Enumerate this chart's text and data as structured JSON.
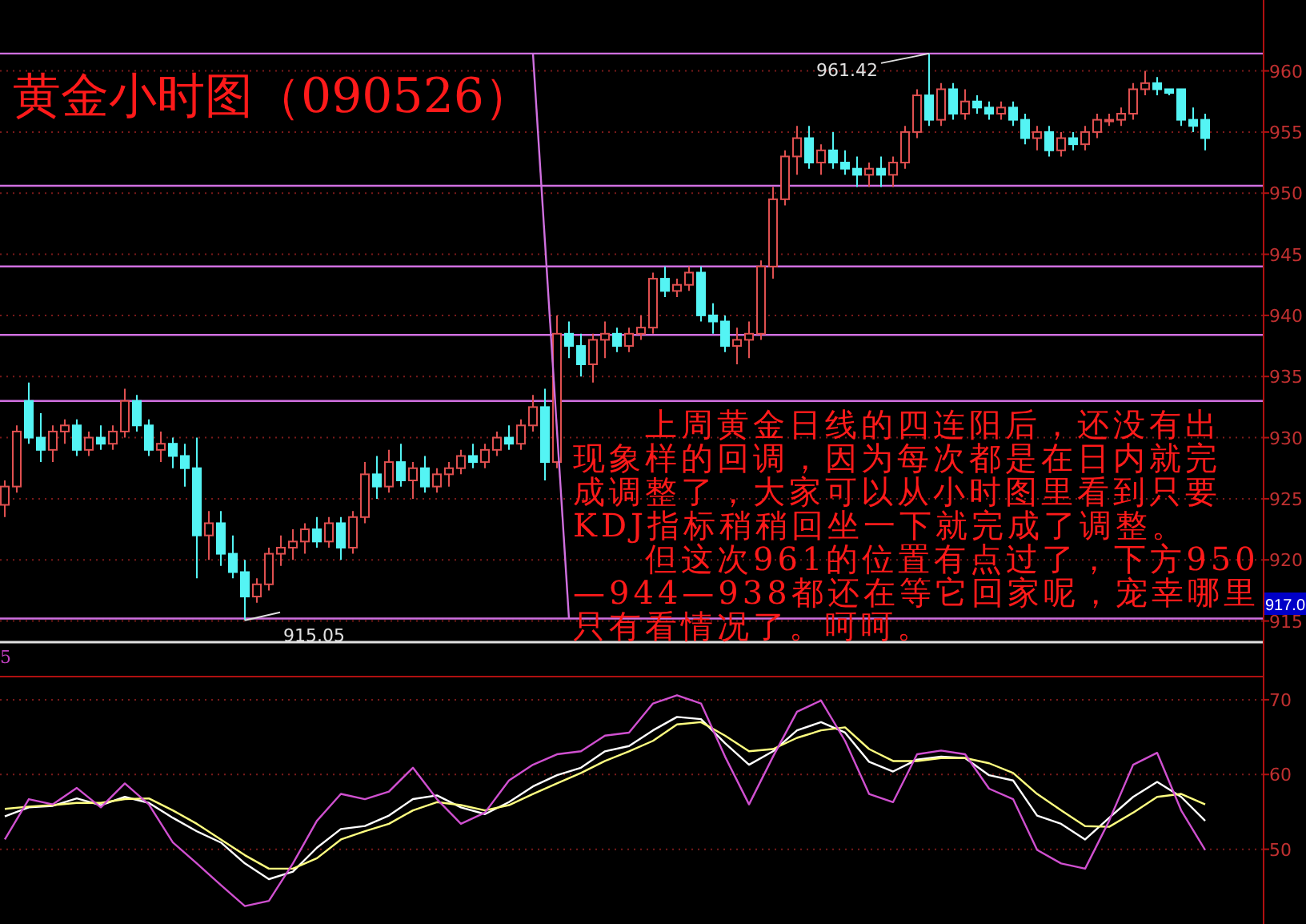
{
  "chart_data": [
    {
      "type": "candlestick",
      "title": "黄金小时图（090526）",
      "categories": [
        null,
        null,
        null,
        null,
        null,
        null,
        null,
        null,
        null,
        null,
        null,
        null,
        null,
        null,
        null,
        null,
        null,
        null,
        null,
        null,
        null,
        null,
        null,
        null,
        null,
        null,
        null,
        null,
        null,
        null,
        null,
        null,
        null,
        null,
        null,
        null,
        null,
        null,
        null,
        null,
        null,
        null,
        null,
        null,
        null,
        null,
        null,
        null,
        null,
        null,
        null,
        null,
        null,
        null,
        null,
        null,
        null,
        null,
        null,
        null,
        null,
        null,
        null,
        null,
        null,
        null,
        null,
        null,
        null,
        null,
        null,
        null,
        null,
        null,
        null,
        null,
        null,
        null,
        null,
        null,
        null,
        null,
        null,
        null,
        null,
        null,
        null,
        null,
        null,
        null,
        null,
        null,
        null,
        null,
        null,
        null,
        null,
        null,
        null,
        null,
        null
      ],
      "ohlc": [
        [
          924.5,
          926.5,
          923.5,
          926
        ],
        [
          926,
          931,
          925.5,
          930.5
        ],
        [
          933,
          934.5,
          929.5,
          930
        ],
        [
          930,
          932,
          928,
          929
        ],
        [
          929,
          931,
          928,
          930.5
        ],
        [
          930.5,
          931.5,
          929.5,
          931
        ],
        [
          931,
          931.5,
          928.5,
          929
        ],
        [
          929,
          930.5,
          928.5,
          930
        ],
        [
          930,
          931,
          929,
          929.5
        ],
        [
          929.5,
          931,
          929,
          930.5
        ],
        [
          930.5,
          934,
          930,
          933
        ],
        [
          933,
          933.5,
          930.5,
          931
        ],
        [
          931,
          931.5,
          928.5,
          929
        ],
        [
          929,
          930.5,
          928,
          929.5
        ],
        [
          929.5,
          930,
          927.5,
          928.5
        ],
        [
          928.5,
          929.5,
          926,
          927.5
        ],
        [
          927.5,
          930,
          918.5,
          922
        ],
        [
          922,
          924,
          920,
          923
        ],
        [
          923,
          924,
          919.5,
          920.5
        ],
        [
          920.5,
          922,
          918.5,
          919
        ],
        [
          919,
          920,
          915.05,
          917
        ],
        [
          917,
          918.5,
          916.5,
          918
        ],
        [
          918,
          921,
          917.5,
          920.5
        ],
        [
          920.5,
          922,
          919.5,
          921
        ],
        [
          921,
          922.5,
          920,
          921.5
        ],
        [
          921.5,
          923,
          920.5,
          922.5
        ],
        [
          922.5,
          923.5,
          921,
          921.5
        ],
        [
          921.5,
          923.5,
          921,
          923
        ],
        [
          923,
          923.5,
          920,
          921
        ],
        [
          921,
          924,
          920.5,
          923.5
        ],
        [
          923.5,
          928,
          923,
          927
        ],
        [
          927,
          928.5,
          925,
          926
        ],
        [
          926,
          929,
          925.5,
          928
        ],
        [
          928,
          929.5,
          926,
          926.5
        ],
        [
          926.5,
          928,
          925,
          927.5
        ],
        [
          927.5,
          928.5,
          925.5,
          926
        ],
        [
          926,
          927.5,
          925.5,
          927
        ],
        [
          927,
          928,
          926,
          927.5
        ],
        [
          927.5,
          929,
          927,
          928.5
        ],
        [
          928.5,
          929.5,
          927.5,
          928
        ],
        [
          928,
          929.5,
          927.5,
          929
        ],
        [
          929,
          930.5,
          928.5,
          930
        ],
        [
          930,
          931,
          929,
          929.5
        ],
        [
          929.5,
          931.5,
          929,
          931
        ],
        [
          931,
          933.5,
          930.5,
          932.5
        ],
        [
          932.5,
          934,
          926.5,
          928
        ],
        [
          928,
          940,
          927.5,
          938.5
        ],
        [
          938.5,
          939.5,
          936.5,
          937.5
        ],
        [
          937.5,
          938.5,
          935,
          936
        ],
        [
          936,
          938.5,
          934.5,
          938
        ],
        [
          938,
          939.5,
          936.5,
          938.5
        ],
        [
          938.5,
          939,
          937,
          937.5
        ],
        [
          937.5,
          939,
          937,
          938.5
        ],
        [
          938.5,
          940,
          938,
          939
        ],
        [
          939,
          943.5,
          938.5,
          943
        ],
        [
          943,
          944,
          941.5,
          942
        ],
        [
          942,
          943,
          941.5,
          942.5
        ],
        [
          942.5,
          944,
          942,
          943.5
        ],
        [
          943.5,
          944,
          939.5,
          940
        ],
        [
          940,
          941,
          938.5,
          939.5
        ],
        [
          939.5,
          940,
          937,
          937.5
        ],
        [
          937.5,
          939,
          936,
          938
        ],
        [
          938,
          939.5,
          936.5,
          938.5
        ],
        [
          938.5,
          944.5,
          938,
          944
        ],
        [
          944,
          950.5,
          943,
          949.5
        ],
        [
          949.5,
          953.5,
          949,
          953
        ],
        [
          953,
          955.5,
          951.5,
          954.5
        ],
        [
          954.5,
          955.5,
          952,
          952.5
        ],
        [
          952.5,
          954,
          951.5,
          953.5
        ],
        [
          953.5,
          955,
          952,
          952.5
        ],
        [
          952.5,
          953.5,
          951.5,
          952
        ],
        [
          952,
          953,
          950.5,
          951.5
        ],
        [
          951.5,
          952.5,
          950.5,
          952
        ],
        [
          952,
          953,
          950.5,
          951.5
        ],
        [
          951.5,
          953,
          950.5,
          952.5
        ],
        [
          952.5,
          955.5,
          952,
          955
        ],
        [
          955,
          958.5,
          954.5,
          958
        ],
        [
          958,
          961.42,
          955.5,
          956
        ],
        [
          956,
          959,
          955.5,
          958.5
        ],
        [
          958.5,
          959,
          956,
          956.5
        ],
        [
          956.5,
          958.5,
          956,
          957.5
        ],
        [
          957.5,
          958,
          956.5,
          957
        ],
        [
          957,
          957.5,
          956,
          956.5
        ],
        [
          956.5,
          957.5,
          956,
          957
        ],
        [
          957,
          957.5,
          955.5,
          956
        ],
        [
          956,
          956.5,
          954,
          954.5
        ],
        [
          954.5,
          955.5,
          953.5,
          955
        ],
        [
          955,
          955.5,
          953,
          953.5
        ],
        [
          953.5,
          955,
          953,
          954.5
        ],
        [
          954.5,
          955,
          953.5,
          954
        ],
        [
          954,
          955.5,
          953.5,
          955
        ],
        [
          955,
          956.5,
          954.5,
          956
        ],
        [
          956,
          956.5,
          955.5,
          956
        ],
        [
          956,
          957,
          955.5,
          956.5
        ],
        [
          956.5,
          959,
          956,
          958.5
        ],
        [
          958.5,
          960,
          958,
          959
        ],
        [
          959,
          959.5,
          958,
          958.5
        ],
        [
          958.5,
          958.5,
          958,
          958.2
        ],
        [
          958.5,
          958.5,
          955.5,
          956
        ],
        [
          956,
          957,
          955,
          955.5
        ],
        [
          956,
          956.5,
          953.5,
          954.5
        ]
      ],
      "series": [
        {
          "type": "line",
          "values": [
            null,
            null,
            null,
            null,
            null,
            null,
            null,
            null,
            null,
            null,
            null,
            null,
            null,
            null,
            null,
            null,
            null,
            null,
            null,
            null,
            null,
            null,
            null,
            null,
            null,
            null,
            null,
            null,
            null,
            null,
            null,
            null,
            null,
            null,
            null,
            null,
            null,
            null,
            null,
            null,
            null,
            null,
            null,
            null,
            961.4,
            null,
            null,
            915.2,
            null,
            null,
            null,
            null,
            null,
            null,
            null,
            null,
            null,
            null,
            null,
            null,
            null,
            null,
            null,
            null,
            null,
            null,
            null,
            null,
            null,
            null,
            null,
            null,
            null,
            null,
            null,
            null,
            null,
            null,
            null,
            null,
            null,
            null,
            null,
            null,
            null,
            null,
            null,
            null,
            null,
            null,
            null,
            null,
            null,
            null,
            null,
            null,
            null,
            null,
            null,
            null,
            null
          ],
          "color": "#d070e0"
        }
      ],
      "ylim": [
        913.4,
        965.8
      ],
      "yticks": [
        915,
        920,
        925,
        930,
        935,
        940,
        945,
        950,
        955,
        960
      ],
      "grid": "y",
      "ref_lines": [
        {
          "axis": "y",
          "value": 961.42,
          "color": "#d070e0"
        },
        {
          "axis": "y",
          "value": 950.6,
          "color": "#d070e0"
        },
        {
          "axis": "y",
          "value": 944,
          "color": "#d070e0"
        },
        {
          "axis": "y",
          "value": 938.4,
          "color": "#d070e0"
        },
        {
          "axis": "y",
          "value": 933,
          "color": "#d070e0"
        },
        {
          "axis": "y",
          "value": 915.2,
          "color": "#d070e0"
        }
      ],
      "annotations": [
        {
          "text": "961.42",
          "y": 961.42
        },
        {
          "text": "915.05",
          "y": 915.05
        },
        "917.0",
        "　　上周黄金日线的四连阳后，还没有出",
        "现象样的回调，因为每次都是在日内就完",
        "成调整了，大家可以从小时图里看到只要",
        "KDJ指标稍稍回坐一下就完成了调整。",
        "　　但这次961的位置有点过了，下方950",
        "—944—938都还在等它回家呢，宠幸哪里",
        "只有看情况了。呵呵。"
      ]
    },
    {
      "type": "line",
      "categories": [
        null,
        null,
        null,
        null,
        null,
        null,
        null,
        null,
        null,
        null,
        null,
        null,
        null,
        null,
        null,
        null,
        null,
        null,
        null,
        null,
        null,
        null,
        null,
        null,
        null,
        null,
        null,
        null,
        null,
        null,
        null,
        null,
        null,
        null,
        null,
        null,
        null,
        null,
        null,
        null,
        null,
        null,
        null,
        null,
        null,
        null,
        null,
        null,
        null,
        null,
        null
      ],
      "series": [
        {
          "color": "#ffffff",
          "values": [
            54.4,
            55.6,
            55.8,
            56.8,
            55.9,
            57,
            56.2,
            54.2,
            52.4,
            50.9,
            48.1,
            46,
            47,
            50.2,
            52.7,
            53.1,
            54.5,
            56.7,
            57.2,
            55.6,
            54.7,
            56.3,
            58.4,
            59.9,
            60.9,
            63.1,
            63.8,
            65.9,
            67.7,
            67.4,
            64.2,
            61.3,
            63.1,
            65.9,
            67,
            65.6,
            61.7,
            60.4,
            62,
            62.4,
            62.2,
            59.9,
            59.2,
            54.5,
            53.4,
            51.3,
            54.2,
            57,
            59,
            57,
            53.8
          ]
        },
        {
          "color": "#ffff80",
          "values": [
            55.4,
            55.7,
            55.9,
            56.2,
            56.2,
            56.7,
            56.8,
            55.2,
            53.4,
            51.3,
            49.2,
            47.4,
            47.4,
            48.8,
            51.3,
            52.4,
            53.4,
            55.2,
            56.3,
            55.9,
            55.2,
            55.9,
            57.4,
            58.8,
            60.2,
            61.8,
            63.1,
            64.5,
            66.7,
            67,
            65.2,
            63.1,
            63.4,
            64.9,
            65.9,
            66.3,
            63.4,
            61.8,
            61.8,
            62.2,
            62.2,
            61.5,
            60.2,
            57.4,
            55.2,
            53.1,
            53,
            54.9,
            57,
            57.4,
            56
          ]
        },
        {
          "color": "#d050d0",
          "values": [
            51.3,
            56.7,
            56,
            58.2,
            55.6,
            58.8,
            56,
            50.9,
            48.1,
            45.2,
            42.4,
            43.1,
            48.1,
            53.8,
            57.4,
            56.7,
            57.7,
            60.9,
            56.7,
            53.4,
            54.9,
            59.2,
            61.3,
            62.7,
            63.1,
            65.2,
            65.6,
            69.5,
            70.6,
            69.5,
            62.4,
            56,
            62.4,
            68.4,
            69.9,
            64.5,
            57.4,
            56.3,
            62.7,
            63.2,
            62.7,
            58.1,
            56.7,
            49.9,
            48.1,
            47.4,
            53.8,
            61.3,
            62.9,
            55.2,
            49.9
          ]
        }
      ],
      "ylim": [
        40,
        73.2
      ],
      "yticks": [
        50,
        60,
        70
      ],
      "grid": "y",
      "annotations": [
        "5"
      ]
    }
  ]
}
